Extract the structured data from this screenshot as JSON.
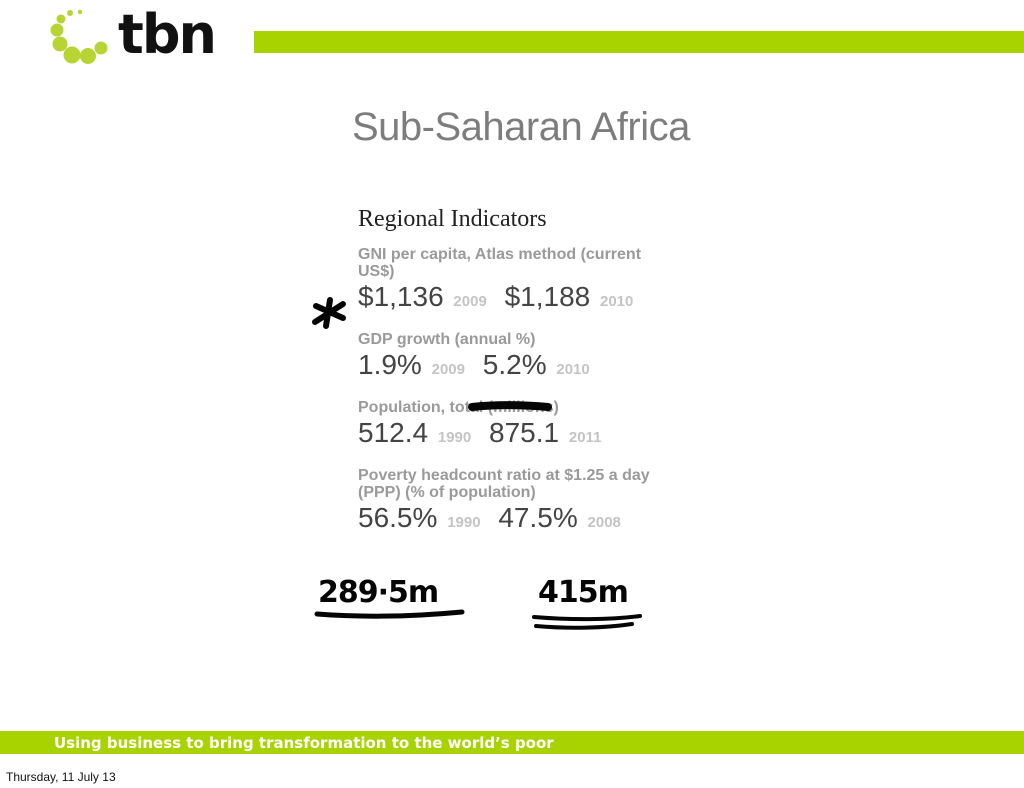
{
  "colors": {
    "accent": "#a8d300",
    "logo_dot": "#b7d334"
  },
  "logo": {
    "text": "tbn",
    "icon": "dot-circle-logo"
  },
  "slide": {
    "title": "Sub-Saharan Africa",
    "panel": {
      "heading": "Regional Indicators",
      "indicators": [
        {
          "label": "GNI per capita, Atlas method (current US$)",
          "values": [
            {
              "value": "$1,136",
              "year": "2009"
            },
            {
              "value": "$1,188",
              "year": "2010"
            }
          ]
        },
        {
          "label": "GDP growth (annual %)",
          "values": [
            {
              "value": "1.9%",
              "year": "2009"
            },
            {
              "value": "5.2%",
              "year": "2010"
            }
          ]
        },
        {
          "label": "Population, total (millions)",
          "values": [
            {
              "value": "512.4",
              "year": "1990"
            },
            {
              "value": "875.1",
              "year": "2011"
            }
          ]
        },
        {
          "label": "Poverty headcount ratio at $1.25 a day (PPP) (% of population)",
          "values": [
            {
              "value": "56.5%",
              "year": "1990"
            },
            {
              "value": "47.5%",
              "year": "2008"
            }
          ]
        }
      ]
    },
    "annotations": {
      "asterisk": "*",
      "note_left": "289·5m",
      "note_right": "415m"
    }
  },
  "footer": {
    "tagline": "Using business to bring transformation to the world’s poor",
    "date": "Thursday, 11 July 13"
  }
}
